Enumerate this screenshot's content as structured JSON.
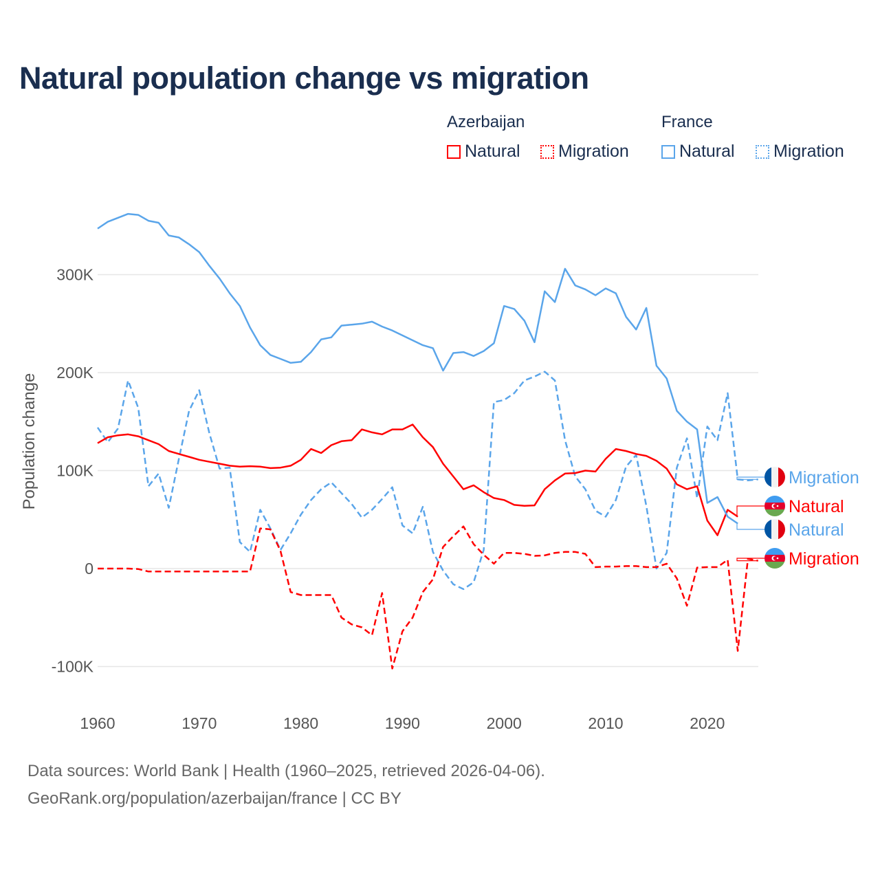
{
  "title": "Natural population change vs migration",
  "legend": {
    "groups": [
      {
        "name": "Azerbaijan",
        "items": [
          {
            "label": "Natural",
            "style": "solid"
          },
          {
            "label": "Migration",
            "style": "dotted"
          }
        ]
      },
      {
        "name": "France",
        "items": [
          {
            "label": "Natural",
            "style": "solid"
          },
          {
            "label": "Migration",
            "style": "dotted"
          }
        ]
      }
    ]
  },
  "footer": {
    "line1": "Data sources: World Bank | Health (1960–2025, retrieved 2026-04-06).",
    "line2": "GeoRank.org/population/azerbaijan/france | CC BY"
  },
  "chart_data": {
    "type": "line",
    "title": "Natural population change vs migration",
    "xlabel": "",
    "ylabel": "Population change",
    "xlim": [
      1960,
      2025
    ],
    "ylim": [
      -110000,
      370000
    ],
    "xticks": [
      1960,
      1970,
      1980,
      1990,
      2000,
      2010,
      2020
    ],
    "yticks": [
      {
        "v": -100000,
        "label": "-100K"
      },
      {
        "v": 0,
        "label": "0"
      },
      {
        "v": 100000,
        "label": "100K"
      },
      {
        "v": 200000,
        "label": "200K"
      },
      {
        "v": 300000,
        "label": "300K"
      }
    ],
    "grid": true,
    "start_year": 1960,
    "series": [
      {
        "name": "France Migration",
        "label": "Migration",
        "country": "France",
        "color": "#5aa5ea",
        "dash": true,
        "values_k": [
          144,
          129,
          143,
          192,
          164,
          84,
          97,
          62,
          112,
          161,
          182,
          138,
          102,
          103,
          27,
          17,
          60,
          41,
          19,
          36,
          55,
          70,
          81,
          88,
          77,
          66,
          52,
          60,
          71,
          83,
          44,
          36,
          63,
          17,
          -2,
          -16,
          -21,
          -14,
          19,
          170,
          172,
          179,
          192,
          196,
          201,
          192,
          131,
          94,
          81,
          59,
          53,
          70,
          104,
          116,
          64,
          0,
          16,
          103,
          133,
          72,
          145,
          131,
          179,
          91,
          90,
          91
        ]
      },
      {
        "name": "Azerbaijan Natural",
        "label": "Natural",
        "country": "Azerbaijan",
        "color": "#ff0000",
        "dash": false,
        "values_k": [
          128,
          134,
          136,
          137,
          135,
          131,
          127,
          120,
          117,
          114,
          111,
          109,
          107,
          105,
          104,
          104.5,
          104,
          102.5,
          103,
          105,
          111,
          122,
          118,
          126,
          130,
          131,
          142,
          139,
          137,
          142,
          142,
          147,
          134,
          124,
          107,
          94,
          81,
          85,
          78,
          72,
          70,
          65,
          64,
          64.5,
          81,
          90,
          97,
          97.5,
          100,
          99,
          112,
          122,
          120,
          117,
          115,
          110,
          102,
          86,
          81,
          84,
          49,
          34,
          60,
          53
        ]
      },
      {
        "name": "France Natural",
        "label": "Natural",
        "country": "France",
        "color": "#5aa5ea",
        "dash": false,
        "values_k": [
          347,
          354,
          358,
          362,
          361,
          355,
          353,
          340,
          338,
          331,
          323,
          309,
          296,
          281,
          268,
          246,
          228,
          218,
          214,
          210,
          211,
          221,
          234,
          236,
          248,
          249,
          250,
          252,
          247,
          243,
          238,
          233,
          228,
          225,
          202,
          220,
          221,
          217,
          222,
          230,
          268,
          265,
          253,
          231,
          283,
          272,
          306,
          289,
          285,
          279,
          286,
          281,
          257,
          244,
          266,
          207,
          194,
          161,
          150,
          142,
          67,
          73,
          53,
          46
        ]
      },
      {
        "name": "Azerbaijan Migration",
        "label": "Migration",
        "country": "Azerbaijan",
        "color": "#ff0000",
        "dash": true,
        "values_k": [
          0,
          0,
          0,
          0,
          -0.5,
          -3,
          -3,
          -3,
          -3,
          -3,
          -3,
          -3,
          -3,
          -3,
          -3,
          -3,
          41,
          40,
          18,
          -24,
          -27,
          -27,
          -27,
          -27,
          -50,
          -57,
          -60,
          -68,
          -25,
          -102,
          -64,
          -50,
          -24,
          -11,
          22,
          33,
          43,
          25,
          14,
          5,
          16,
          16,
          15,
          13,
          13.5,
          16,
          17,
          17,
          15,
          1.5,
          2,
          2,
          2.5,
          2.5,
          1.5,
          1.5,
          5,
          -10,
          -38,
          1,
          1.5,
          1.5,
          9,
          -84,
          10,
          8
        ]
      }
    ]
  },
  "colors": {
    "azerbaijan": "#ff0000",
    "france": "#5aa5ea",
    "title": "#1a2e4f"
  }
}
